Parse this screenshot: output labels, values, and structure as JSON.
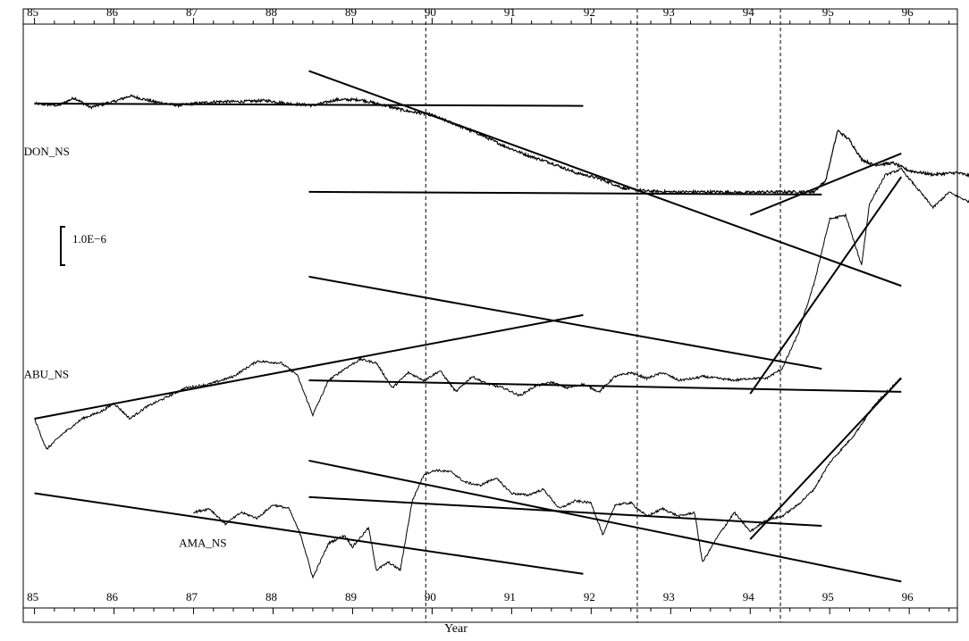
{
  "chart_data": {
    "type": "line",
    "xlabel": "Year",
    "xlim": [
      1984.85,
      1996.8
    ],
    "x_ticks": [
      1985,
      1986,
      1987,
      1988,
      1989,
      1990,
      1991,
      1992,
      1993,
      1994,
      1995,
      1996
    ],
    "x_tick_labels": [
      "85",
      "86",
      "87",
      "88",
      "89",
      "90",
      "91",
      "92",
      "93",
      "94",
      "95",
      "96"
    ],
    "scale_bar": {
      "label": "1.0E−6",
      "value": 1e-06
    },
    "event_lines": [
      1989.92,
      1992.58,
      1994.38
    ],
    "grid": false,
    "series": [
      {
        "name": "DON_NS",
        "label_x": 1985.0,
        "label_offset": -1.25,
        "noise": 0.035,
        "x": [
          1985.0,
          1985.3,
          1985.5,
          1985.7,
          1986.0,
          1986.2,
          1986.5,
          1986.8,
          1987.0,
          1987.3,
          1987.6,
          1987.9,
          1988.2,
          1988.5,
          1988.8,
          1989.1,
          1989.4,
          1989.7,
          1990.0,
          1990.3,
          1990.6,
          1990.9,
          1991.2,
          1991.5,
          1991.8,
          1992.1,
          1992.4,
          1992.7,
          1993.0,
          1993.3,
          1993.6,
          1993.9,
          1994.2,
          1994.5,
          1994.8,
          1994.95,
          1995.1,
          1995.25,
          1995.4,
          1995.55,
          1995.8,
          1996.0,
          1996.3,
          1996.6,
          1996.8
        ],
        "y": [
          0.0,
          -0.05,
          0.15,
          -0.1,
          0.05,
          0.2,
          0.05,
          -0.05,
          0.0,
          0.05,
          0.05,
          0.08,
          0.0,
          -0.05,
          0.1,
          0.1,
          -0.05,
          -0.2,
          -0.3,
          -0.55,
          -0.8,
          -1.1,
          -1.35,
          -1.55,
          -1.8,
          -1.95,
          -2.2,
          -2.28,
          -2.3,
          -2.3,
          -2.3,
          -2.32,
          -2.3,
          -2.3,
          -2.3,
          -2.0,
          -0.7,
          -0.95,
          -1.45,
          -1.6,
          -1.55,
          -1.75,
          -1.85,
          -1.8,
          -1.9
        ],
        "trend_lines": [
          {
            "x": [
              1985.0,
              1991.9
            ],
            "y": [
              0.0,
              -0.06
            ]
          },
          {
            "x": [
              1988.45,
              1995.9
            ],
            "y": [
              0.85,
              -4.75
            ]
          },
          {
            "x": [
              1988.45,
              1994.9
            ],
            "y": [
              -2.3,
              -2.37
            ]
          },
          {
            "x": [
              1994.0,
              1995.9
            ],
            "y": [
              -2.9,
              -1.3
            ]
          }
        ]
      },
      {
        "name": "ABU_NS",
        "label_x": 1985.0,
        "label_offset": 0.15,
        "noise": 0.03,
        "x": [
          1985.0,
          1985.15,
          1985.35,
          1985.6,
          1985.85,
          1986.0,
          1986.2,
          1986.4,
          1986.6,
          1986.9,
          1987.2,
          1987.5,
          1987.8,
          1988.1,
          1988.3,
          1988.5,
          1988.7,
          1988.9,
          1989.1,
          1989.3,
          1989.5,
          1989.7,
          1989.9,
          1990.1,
          1990.3,
          1990.5,
          1990.7,
          1990.9,
          1991.1,
          1991.3,
          1991.5,
          1991.7,
          1991.9,
          1992.1,
          1992.3,
          1992.5,
          1992.7,
          1992.9,
          1993.1,
          1993.3,
          1993.4,
          1993.6,
          1993.8,
          1994.0,
          1994.2,
          1994.4,
          1994.6,
          1994.8,
          1995.0,
          1995.2,
          1995.4,
          1995.5,
          1995.7,
          1995.9,
          1996.1,
          1996.3,
          1996.5,
          1996.8
        ],
        "y": [
          -1.0,
          -1.8,
          -1.4,
          -1.0,
          -0.8,
          -0.6,
          -1.0,
          -0.7,
          -0.5,
          -0.2,
          -0.1,
          0.1,
          0.5,
          0.45,
          0.15,
          -0.9,
          0.0,
          0.3,
          0.55,
          0.45,
          -0.2,
          0.2,
          0.0,
          0.25,
          -0.3,
          0.1,
          -0.1,
          -0.2,
          -0.4,
          -0.15,
          -0.05,
          -0.2,
          -0.1,
          -0.3,
          0.1,
          0.2,
          0.05,
          0.2,
          0.0,
          0.05,
          0.1,
          0.05,
          0.0,
          0.05,
          0.05,
          0.3,
          1.2,
          2.5,
          4.2,
          4.3,
          3.0,
          4.6,
          5.35,
          5.5,
          5.0,
          4.5,
          4.9,
          4.6
        ],
        "trend_lines": [
          {
            "x": [
              1985.0,
              1991.9
            ],
            "y": [
              -1.0,
              1.7
            ]
          },
          {
            "x": [
              1988.45,
              1995.9
            ],
            "y": [
              0.0,
              -0.3
            ]
          },
          {
            "x": [
              1988.45,
              1994.9
            ],
            "y": [
              2.7,
              0.3
            ]
          },
          {
            "x": [
              1994.0,
              1995.9
            ],
            "y": [
              -0.35,
              5.3
            ]
          }
        ]
      },
      {
        "name": "AMA_NS",
        "label_x": 1986.95,
        "label_offset": -0.8,
        "noise": 0.03,
        "x": [
          1987.0,
          1987.2,
          1987.4,
          1987.6,
          1987.8,
          1988.0,
          1988.2,
          1988.35,
          1988.5,
          1988.7,
          1988.9,
          1989.0,
          1989.2,
          1989.3,
          1989.45,
          1989.6,
          1989.75,
          1989.9,
          1990.05,
          1990.25,
          1990.4,
          1990.6,
          1990.8,
          1991.0,
          1991.2,
          1991.4,
          1991.6,
          1991.8,
          1992.0,
          1992.15,
          1992.3,
          1992.5,
          1992.7,
          1992.9,
          1993.1,
          1993.3,
          1993.4,
          1993.6,
          1993.8,
          1994.0,
          1994.2,
          1994.4,
          1994.6,
          1994.8,
          1995.0,
          1995.3,
          1995.6,
          1995.9
        ],
        "y": [
          0.0,
          0.1,
          -0.3,
          0.0,
          -0.15,
          0.2,
          0.1,
          -0.6,
          -1.7,
          -0.8,
          -0.6,
          -0.9,
          -0.4,
          -1.5,
          -1.3,
          -1.5,
          0.3,
          1.0,
          1.1,
          1.05,
          0.8,
          0.7,
          0.9,
          0.5,
          0.45,
          0.6,
          0.1,
          0.3,
          0.25,
          -0.6,
          0.2,
          0.25,
          -0.1,
          0.1,
          -0.1,
          0.0,
          -1.3,
          -0.6,
          0.0,
          -0.5,
          -0.2,
          -0.1,
          0.2,
          0.6,
          1.3,
          2.0,
          2.9,
          3.5
        ],
        "trend_lines": [
          {
            "x": [
              1985.0,
              1991.9
            ],
            "y": [
              0.5,
              -1.6
            ]
          },
          {
            "x": [
              1988.45,
              1995.9
            ],
            "y": [
              1.35,
              -1.8
            ]
          },
          {
            "x": [
              1988.45,
              1994.9
            ],
            "y": [
              0.4,
              -0.35
            ]
          },
          {
            "x": [
              1994.0,
              1995.9
            ],
            "y": [
              -0.7,
              3.5
            ]
          }
        ]
      }
    ]
  }
}
